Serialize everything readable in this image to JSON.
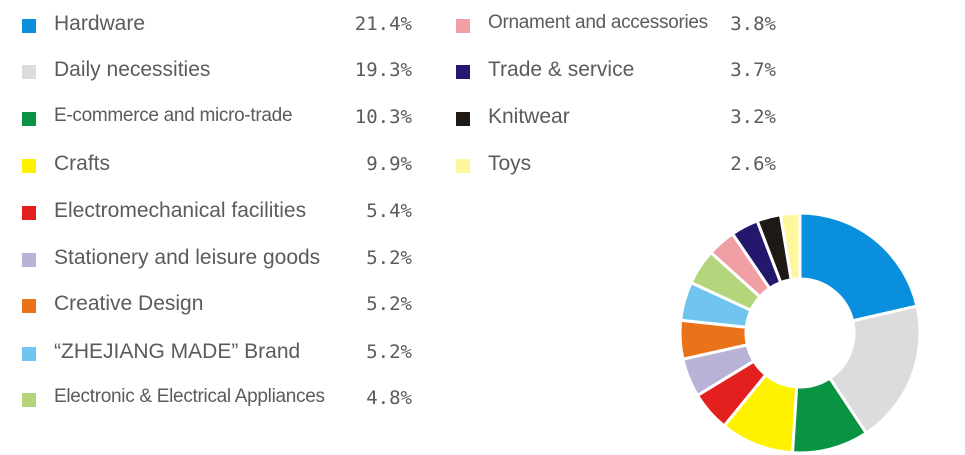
{
  "chart_data": {
    "type": "pie",
    "donut": true,
    "categories": [
      "Hardware",
      "Daily necessities",
      "E-commerce and micro-trade",
      "Crafts",
      "Electromechanical facilities",
      "Stationery and leisure goods",
      "Creative Design",
      "“ZHEJIANG MADE” Brand",
      "Electronic & Electrical Appliances",
      "Ornament and accessories",
      "Trade & service",
      "Knitwear",
      "Toys"
    ],
    "values": [
      21.4,
      19.3,
      10.3,
      9.9,
      5.4,
      5.2,
      5.2,
      5.2,
      4.8,
      3.8,
      3.7,
      3.2,
      2.6
    ],
    "value_labels": [
      "21.4%",
      "19.3%",
      "10.3%",
      "9.9%",
      "5.4%",
      "5.2%",
      "5.2%",
      "5.2%",
      "4.8%",
      "3.8%",
      "3.7%",
      "3.2%",
      "2.6%"
    ],
    "colors": [
      "#0a8fdc",
      "#dcdcdc",
      "#0a9342",
      "#fff200",
      "#e3201d",
      "#b8b3d6",
      "#ea7319",
      "#70c4ef",
      "#b3d67c",
      "#f19ea4",
      "#24186e",
      "#1e1914",
      "#fff79e"
    ],
    "legend_position": "left"
  }
}
